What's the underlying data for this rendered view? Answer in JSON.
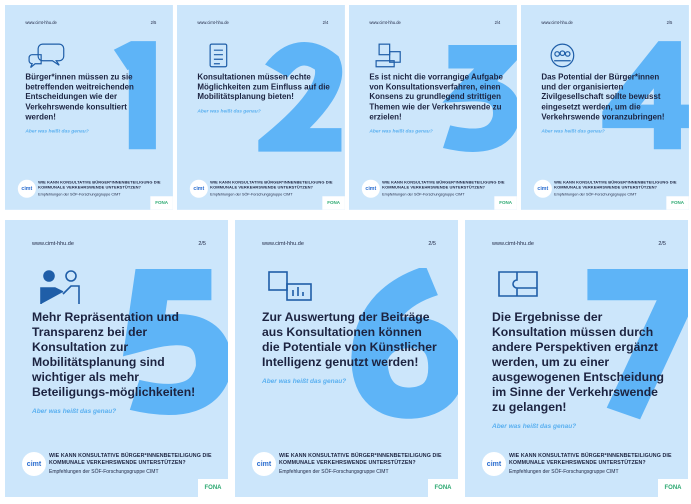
{
  "common": {
    "url": "www.cimt-hhu.de",
    "question": "Aber was heißt das genau?",
    "footer_title": "WIE KANN KONSULTATIVE BÜRGER*INNENBETEILIGUNG DIE KOMMUNALE VERKEHRSWENDE UNTERSTÜTZEN?",
    "footer_sub": "Empfehlungen der SÖF-Forschungsgruppe CIMT",
    "logo": "cimt",
    "partner_logo": "FONA"
  },
  "colors": {
    "card_bg": "#cce6fb",
    "number": "#5eb4f7",
    "text": "#1c2340",
    "accent": "#5ab0f0"
  },
  "cards": [
    {
      "number": "1",
      "page": "2/5",
      "icon": "speech-bubbles-icon",
      "headline": "Bürger*innen müssen zu sie betreffenden weitreichenden Entscheidungen wie der Verkehrswende konsultiert werden!"
    },
    {
      "number": "2",
      "page": "2/4",
      "icon": "clipboard-checklist-icon",
      "headline": "Konsultationen müssen echte Möglichkeiten zum Einfluss auf die Mobilitätsplanung bieten!"
    },
    {
      "number": "3",
      "page": "2/4",
      "icon": "question-boards-icon",
      "headline": "Es ist nicht die vorrangige Aufgabe von Konsultationsverfahren, einen Konsens zu grundlegend strittigen Themen wie der Verkehrswende zu erzielen!"
    },
    {
      "number": "4",
      "page": "2/5",
      "icon": "group-cycle-icon",
      "headline": "Das Potential der Bürger*innen und der organisierten Zivilgesellschaft sollte bewusst eingesetzt werden, um die Verkehrswende voranzubringen!"
    },
    {
      "number": "5",
      "page": "2/5",
      "icon": "handshake-icon",
      "headline": "Mehr Repräsentation und Transparenz bei der Konsultation zur Mobilitätsplanung sind wichtiger als mehr Beteiligungs-möglichkeiten!"
    },
    {
      "number": "6",
      "page": "2/5",
      "icon": "ai-chip-screen-icon",
      "headline": "Zur Auswertung der Beiträge aus Konsultationen können die Potentiale von Künstlicher Intelligenz genutzt werden!"
    },
    {
      "number": "7",
      "page": "2/5",
      "icon": "puzzle-icon",
      "headline": "Die Ergebnisse der Konsultation müssen durch andere Perspektiven ergänzt werden, um zu einer ausgewogenen Entscheidung im Sinne der Verkehrswende zu gelangen!"
    }
  ]
}
